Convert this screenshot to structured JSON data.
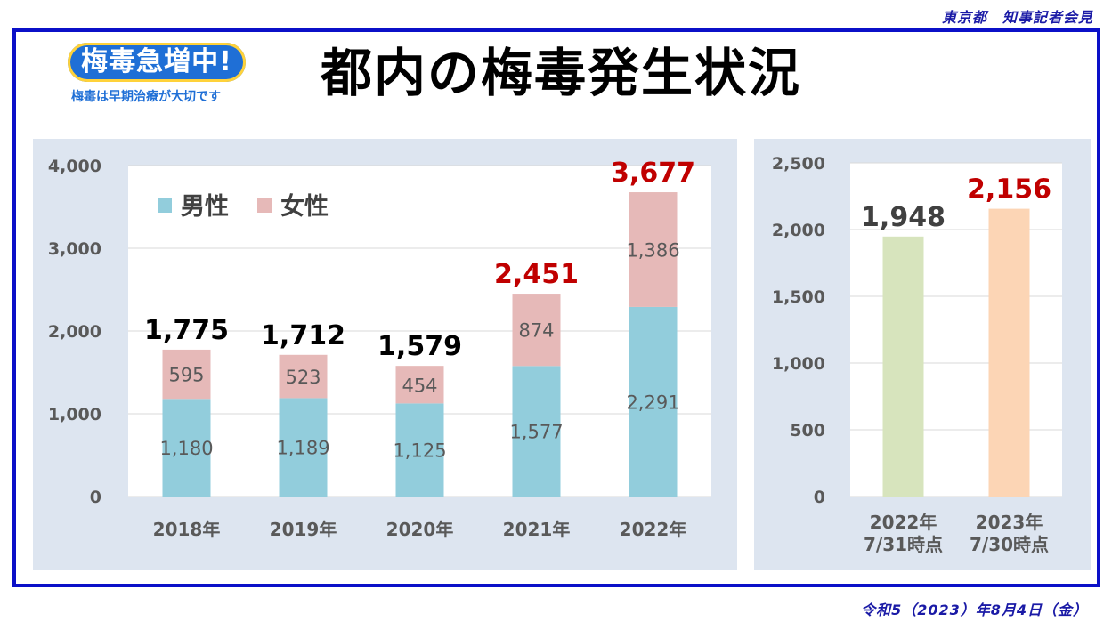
{
  "header": {
    "org": "東京都　知事記者会見",
    "title": "都内の梅毒発生状況",
    "date": "令和5（2023）年8月4日（金）"
  },
  "logo": {
    "main": "梅毒急増中!",
    "sub": "梅毒は早期治療が大切です"
  },
  "colors": {
    "frame": "#0b10c8",
    "panel_bg": "#dde5f0",
    "male": "#92cddc",
    "female": "#e6b9b8",
    "total_red": "#c00000",
    "bar_2022_partial": "#d7e4bd",
    "bar_2023_partial": "#fcd5b5"
  },
  "chart_data": [
    {
      "type": "bar",
      "stacked": true,
      "categories": [
        "2018年",
        "2019年",
        "2020年",
        "2021年",
        "2022年"
      ],
      "series": [
        {
          "name": "男性",
          "values": [
            1180,
            1189,
            1125,
            1577,
            2291
          ]
        },
        {
          "name": "女性",
          "values": [
            595,
            523,
            454,
            874,
            1386
          ]
        }
      ],
      "totals": [
        1775,
        1712,
        1579,
        2451,
        3677
      ],
      "total_labels": [
        "1,775",
        "1,712",
        "1,579",
        "2,451",
        "3,677"
      ],
      "ylim": [
        0,
        4000
      ],
      "yticks": [
        0,
        1000,
        2000,
        3000,
        4000
      ],
      "ytick_labels": [
        "0",
        "1,000",
        "2,000",
        "3,000",
        "4,000"
      ],
      "legend": "top-left",
      "grid": true
    },
    {
      "type": "bar",
      "categories": [
        "2022年\n7/31時点",
        "2023年\n7/30時点"
      ],
      "values": [
        1948,
        2156
      ],
      "value_labels": [
        "1,948",
        "2,156"
      ],
      "ylim": [
        0,
        2500
      ],
      "yticks": [
        0,
        500,
        1000,
        1500,
        2000,
        2500
      ],
      "ytick_labels": [
        "0",
        "500",
        "1,000",
        "1,500",
        "2,000",
        "2,500"
      ],
      "grid": true
    }
  ]
}
